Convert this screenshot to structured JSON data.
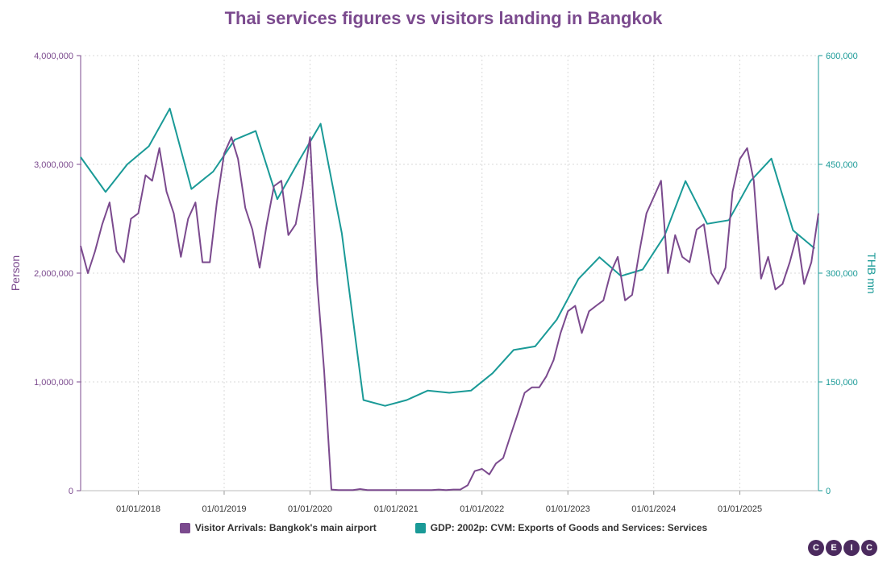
{
  "logo_letters": [
    "C",
    "E",
    "I",
    "C"
  ],
  "chart_data": {
    "type": "line",
    "title": "Thai services figures vs visitors landing in Bangkok",
    "x_tick_labels": [
      "01/01/2018",
      "01/01/2019",
      "01/01/2020",
      "01/01/2021",
      "01/01/2022",
      "01/01/2023",
      "01/01/2024",
      "01/01/2025"
    ],
    "x_range": [
      "2017-05-01",
      "2025-12-01"
    ],
    "grid": true,
    "legend_position": "bottom",
    "y_left": {
      "label": "Person",
      "range": [
        0,
        4000000
      ],
      "tick_labels": [
        "0",
        "1,000,000",
        "2,000,000",
        "3,000,000",
        "4,000,000"
      ]
    },
    "y_right": {
      "label": "THB mn",
      "range": [
        0,
        600000
      ],
      "tick_labels": [
        "0",
        "150,000",
        "300,000",
        "450,000",
        "600,000"
      ]
    },
    "series": [
      {
        "name": "Visitor Arrivals: Bangkok's main airport",
        "axis": "left",
        "color": "#7b4a8e",
        "points": [
          [
            "2017-05-01",
            2250000
          ],
          [
            "2017-06-01",
            2000000
          ],
          [
            "2017-07-01",
            2200000
          ],
          [
            "2017-08-01",
            2450000
          ],
          [
            "2017-09-01",
            2650000
          ],
          [
            "2017-10-01",
            2200000
          ],
          [
            "2017-11-01",
            2100000
          ],
          [
            "2017-12-01",
            2500000
          ],
          [
            "2018-01-01",
            2550000
          ],
          [
            "2018-02-01",
            2900000
          ],
          [
            "2018-03-01",
            2850000
          ],
          [
            "2018-04-01",
            3150000
          ],
          [
            "2018-05-01",
            2750000
          ],
          [
            "2018-06-01",
            2550000
          ],
          [
            "2018-07-01",
            2150000
          ],
          [
            "2018-08-01",
            2500000
          ],
          [
            "2018-09-01",
            2650000
          ],
          [
            "2018-10-01",
            2100000
          ],
          [
            "2018-11-01",
            2100000
          ],
          [
            "2018-12-01",
            2650000
          ],
          [
            "2019-01-01",
            3100000
          ],
          [
            "2019-02-01",
            3250000
          ],
          [
            "2019-03-01",
            3050000
          ],
          [
            "2019-04-01",
            2600000
          ],
          [
            "2019-05-01",
            2400000
          ],
          [
            "2019-06-01",
            2050000
          ],
          [
            "2019-07-01",
            2450000
          ],
          [
            "2019-08-01",
            2800000
          ],
          [
            "2019-09-01",
            2850000
          ],
          [
            "2019-10-01",
            2350000
          ],
          [
            "2019-11-01",
            2450000
          ],
          [
            "2019-12-01",
            2800000
          ],
          [
            "2020-01-01",
            3250000
          ],
          [
            "2020-02-01",
            1900000
          ],
          [
            "2020-03-01",
            1100000
          ],
          [
            "2020-04-01",
            10000
          ],
          [
            "2020-05-01",
            5000
          ],
          [
            "2020-06-01",
            5000
          ],
          [
            "2020-07-01",
            5000
          ],
          [
            "2020-08-01",
            15000
          ],
          [
            "2020-09-01",
            5000
          ],
          [
            "2020-10-01",
            5000
          ],
          [
            "2020-11-01",
            5000
          ],
          [
            "2020-12-01",
            5000
          ],
          [
            "2021-01-01",
            5000
          ],
          [
            "2021-02-01",
            5000
          ],
          [
            "2021-03-01",
            5000
          ],
          [
            "2021-04-01",
            5000
          ],
          [
            "2021-05-01",
            5000
          ],
          [
            "2021-06-01",
            5000
          ],
          [
            "2021-07-01",
            10000
          ],
          [
            "2021-08-01",
            5000
          ],
          [
            "2021-09-01",
            10000
          ],
          [
            "2021-10-01",
            10000
          ],
          [
            "2021-11-01",
            50000
          ],
          [
            "2021-12-01",
            180000
          ],
          [
            "2022-01-01",
            200000
          ],
          [
            "2022-02-01",
            150000
          ],
          [
            "2022-03-01",
            250000
          ],
          [
            "2022-04-01",
            300000
          ],
          [
            "2022-05-01",
            500000
          ],
          [
            "2022-06-01",
            700000
          ],
          [
            "2022-07-01",
            900000
          ],
          [
            "2022-08-01",
            950000
          ],
          [
            "2022-09-01",
            950000
          ],
          [
            "2022-10-01",
            1050000
          ],
          [
            "2022-11-01",
            1200000
          ],
          [
            "2022-12-01",
            1450000
          ],
          [
            "2023-01-01",
            1650000
          ],
          [
            "2023-02-01",
            1700000
          ],
          [
            "2023-03-01",
            1450000
          ],
          [
            "2023-04-01",
            1650000
          ],
          [
            "2023-05-01",
            1700000
          ],
          [
            "2023-06-01",
            1750000
          ],
          [
            "2023-07-01",
            2000000
          ],
          [
            "2023-08-01",
            2150000
          ],
          [
            "2023-09-01",
            1750000
          ],
          [
            "2023-10-01",
            1800000
          ],
          [
            "2023-11-01",
            2200000
          ],
          [
            "2023-12-01",
            2550000
          ],
          [
            "2024-01-01",
            2700000
          ],
          [
            "2024-02-01",
            2850000
          ],
          [
            "2024-03-01",
            2000000
          ],
          [
            "2024-04-01",
            2350000
          ],
          [
            "2024-05-01",
            2150000
          ],
          [
            "2024-06-01",
            2100000
          ],
          [
            "2024-07-01",
            2400000
          ],
          [
            "2024-08-01",
            2450000
          ],
          [
            "2024-09-01",
            2000000
          ],
          [
            "2024-10-01",
            1900000
          ],
          [
            "2024-11-01",
            2050000
          ],
          [
            "2024-12-01",
            2750000
          ],
          [
            "2025-01-01",
            3050000
          ],
          [
            "2025-02-01",
            3150000
          ],
          [
            "2025-03-01",
            2850000
          ],
          [
            "2025-04-01",
            1950000
          ],
          [
            "2025-05-01",
            2150000
          ],
          [
            "2025-06-01",
            1850000
          ],
          [
            "2025-07-01",
            1900000
          ],
          [
            "2025-08-01",
            2100000
          ],
          [
            "2025-09-01",
            2350000
          ],
          [
            "2025-10-01",
            1900000
          ],
          [
            "2025-11-01",
            2100000
          ],
          [
            "2025-12-01",
            2550000
          ]
        ]
      },
      {
        "name": "GDP: 2002p: CVM: Exports of Goods and Services: Services",
        "axis": "right",
        "color": "#1a9a97",
        "points": [
          [
            "2017-05-01",
            460000
          ],
          [
            "2017-08-15",
            412000
          ],
          [
            "2017-11-15",
            450000
          ],
          [
            "2018-02-15",
            475000
          ],
          [
            "2018-05-15",
            527000
          ],
          [
            "2018-08-15",
            416000
          ],
          [
            "2018-11-15",
            440000
          ],
          [
            "2019-02-15",
            484000
          ],
          [
            "2019-05-15",
            496000
          ],
          [
            "2019-08-15",
            402000
          ],
          [
            "2019-11-15",
            455000
          ],
          [
            "2020-02-15",
            506000
          ],
          [
            "2020-05-15",
            355000
          ],
          [
            "2020-08-15",
            125000
          ],
          [
            "2020-11-15",
            117000
          ],
          [
            "2021-02-15",
            125000
          ],
          [
            "2021-05-15",
            138000
          ],
          [
            "2021-08-15",
            135000
          ],
          [
            "2021-11-15",
            138000
          ],
          [
            "2022-02-15",
            162000
          ],
          [
            "2022-05-15",
            194000
          ],
          [
            "2022-08-15",
            199000
          ],
          [
            "2022-11-15",
            236000
          ],
          [
            "2023-02-15",
            292000
          ],
          [
            "2023-05-15",
            322000
          ],
          [
            "2023-08-15",
            296000
          ],
          [
            "2023-11-15",
            305000
          ],
          [
            "2024-02-15",
            351000
          ],
          [
            "2024-05-15",
            427000
          ],
          [
            "2024-08-15",
            368000
          ],
          [
            "2024-11-15",
            373000
          ],
          [
            "2025-02-15",
            427000
          ],
          [
            "2025-05-15",
            458000
          ],
          [
            "2025-08-15",
            359000
          ],
          [
            "2025-11-15",
            334000
          ]
        ]
      }
    ]
  }
}
